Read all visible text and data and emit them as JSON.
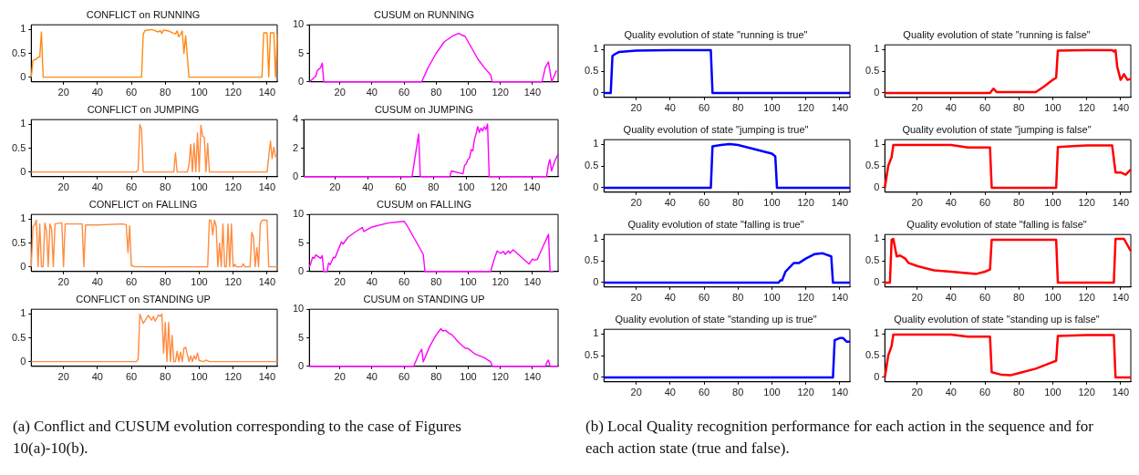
{
  "chart_data": [
    {
      "type": "line",
      "title": "CONFLICT on RUNNING",
      "color": "#ff8a14",
      "xlim": [
        1,
        146
      ],
      "xticks": [
        20,
        40,
        60,
        80,
        100,
        120,
        140
      ],
      "ylim": [
        -0.1,
        1.1
      ],
      "yticks": [
        0,
        0.5,
        1
      ],
      "annotations": [
        "(a) Conflict and CUSUM evolution corresponding to the case of Figures 10(a)-10(b)."
      ],
      "x": [
        1,
        2,
        4,
        5,
        6,
        7,
        8,
        66,
        67,
        68,
        72,
        76,
        77,
        78,
        79,
        82,
        85,
        86,
        87,
        88,
        89,
        90,
        91,
        92,
        94,
        137,
        138,
        140,
        141,
        142,
        144,
        145,
        146
      ],
      "values": [
        0,
        0.35,
        0.38,
        0.42,
        0.42,
        0.95,
        0,
        0,
        0.9,
        0.98,
        1,
        0.95,
        0.98,
        0.92,
        0.99,
        0.97,
        0.92,
        0.91,
        0.97,
        0.85,
        0.9,
        0.97,
        0.5,
        0.87,
        0,
        0,
        0.93,
        0.93,
        0,
        0.93,
        0.93,
        0,
        0.9
      ]
    },
    {
      "type": "line",
      "title": "CUSUM on RUNNING",
      "color": "#ff00ff",
      "xlim": [
        1,
        156
      ],
      "xticks": [
        20,
        40,
        60,
        80,
        100,
        120,
        140
      ],
      "ylim": [
        0,
        10
      ],
      "yticks": [
        0,
        5,
        10
      ],
      "x": [
        1,
        3,
        5,
        6,
        8,
        9,
        10,
        71,
        75,
        80,
        85,
        90,
        94,
        96,
        98,
        102,
        106,
        110,
        114,
        115,
        146,
        148,
        150,
        152,
        155
      ],
      "values": [
        0,
        0.5,
        1,
        2,
        2.5,
        3.3,
        0,
        0,
        2.5,
        5,
        7,
        8,
        8.5,
        8.2,
        8,
        6,
        4,
        2.5,
        1.2,
        0,
        0,
        2.5,
        3.5,
        0,
        2
      ]
    },
    {
      "type": "line",
      "title": "CONFLICT on JUMPING",
      "color": "#ff8c40",
      "xlim": [
        1,
        146
      ],
      "xticks": [
        20,
        40,
        60,
        80,
        100,
        120,
        140
      ],
      "ylim": [
        -0.1,
        1.1
      ],
      "yticks": [
        0,
        0.5,
        1
      ],
      "x": [
        1,
        63,
        64,
        65,
        66,
        67,
        85,
        86,
        87,
        93,
        94,
        95,
        96,
        97,
        98,
        99,
        100,
        101,
        102,
        103,
        104,
        105,
        106,
        140,
        142,
        143,
        144,
        145,
        146
      ],
      "values": [
        0,
        0,
        0.05,
        1,
        0.9,
        0,
        0,
        0.4,
        0,
        0,
        0.15,
        0.58,
        0,
        0.6,
        0,
        0.82,
        0,
        0.98,
        0.75,
        0.73,
        0,
        0.6,
        0,
        0,
        0.65,
        0.28,
        0.52,
        0.32,
        0.3
      ]
    },
    {
      "type": "line",
      "title": "CUSUM on JUMPING",
      "color": "#ff00ff",
      "xlim": [
        1,
        156
      ],
      "xticks": [
        20,
        40,
        60,
        80,
        100,
        120,
        140
      ],
      "ylim": [
        0,
        4
      ],
      "yticks": [
        0,
        2,
        4
      ],
      "x": [
        1,
        67,
        71,
        72,
        90,
        91,
        98,
        99,
        100,
        101,
        102,
        103,
        104,
        105,
        106,
        107,
        108,
        109,
        110,
        111,
        112,
        113,
        114,
        149,
        150,
        151,
        152,
        154,
        156
      ],
      "values": [
        0,
        0,
        3,
        0,
        0,
        0.4,
        0.2,
        0.8,
        0.9,
        1.2,
        1.3,
        1.9,
        1.8,
        2.6,
        3,
        3.5,
        3.1,
        3.4,
        3.2,
        3.5,
        3.3,
        3.7,
        0,
        0,
        0.8,
        1.2,
        0.4,
        1.1,
        1.6
      ]
    },
    {
      "type": "line",
      "title": "CONFLICT on FALLING",
      "color": "#ff8c40",
      "xlim": [
        1,
        146
      ],
      "xticks": [
        20,
        40,
        60,
        80,
        100,
        120,
        140
      ],
      "ylim": [
        -0.1,
        1.1
      ],
      "yticks": [
        0,
        0.5,
        1
      ],
      "x": [
        1,
        2,
        3,
        4,
        5,
        6,
        7,
        8,
        9,
        10,
        11,
        12,
        13,
        14,
        15,
        18,
        19,
        20,
        21,
        31,
        32,
        33,
        40,
        55,
        57,
        58,
        59,
        60,
        61,
        62,
        105,
        106,
        107,
        108,
        109,
        110,
        111,
        112,
        113,
        114,
        115,
        116,
        117,
        118,
        119,
        120,
        121,
        122,
        125,
        126,
        127,
        130,
        131,
        132,
        133,
        134,
        135,
        136,
        137,
        140,
        141,
        146
      ],
      "values": [
        0,
        0.85,
        0.88,
        0.98,
        0,
        0.9,
        0,
        0,
        0.92,
        0.75,
        0,
        0.9,
        0.8,
        0,
        0.9,
        0.92,
        0.92,
        0,
        0.9,
        0.9,
        0,
        0.88,
        0.88,
        0.9,
        0.88,
        0.3,
        0.86,
        0.02,
        0.02,
        0,
        0,
        0.98,
        0.98,
        0.67,
        0.98,
        0.85,
        0,
        0.5,
        0,
        0.9,
        0,
        0,
        0.9,
        0,
        0.9,
        0,
        0.05,
        0,
        0,
        0.06,
        0,
        0,
        0.72,
        0.62,
        0,
        0.4,
        0,
        0.9,
        0.98,
        0.98,
        0,
        0
      ]
    },
    {
      "type": "line",
      "title": "CUSUM on FALLING",
      "color": "#ff00ff",
      "xlim": [
        1,
        156
      ],
      "xticks": [
        20,
        40,
        60,
        80,
        100,
        120,
        140
      ],
      "ylim": [
        0,
        10
      ],
      "yticks": [
        0,
        5,
        10
      ],
      "x": [
        1,
        2,
        3,
        4,
        5,
        7,
        8,
        9,
        10,
        12,
        13,
        14,
        16,
        17,
        20,
        21,
        22,
        25,
        30,
        34,
        35,
        40,
        50,
        60,
        62,
        66,
        70,
        72,
        73,
        114,
        116,
        118,
        120,
        122,
        123,
        125,
        126,
        128,
        132,
        138,
        140,
        141,
        143,
        146,
        150,
        151,
        153
      ],
      "values": [
        0.8,
        1.5,
        2.5,
        2.3,
        2.9,
        2.5,
        2.3,
        2.8,
        0,
        0,
        1.5,
        1.2,
        2.5,
        2.4,
        4.5,
        5.2,
        4.8,
        6,
        7,
        7.7,
        7,
        7.8,
        8.5,
        8.8,
        8,
        6,
        4,
        3,
        0,
        0,
        2,
        3.6,
        3.2,
        3.5,
        3,
        3.6,
        3.2,
        3.8,
        2.8,
        1.3,
        2.2,
        2,
        2.1,
        4,
        6.5,
        0,
        0
      ]
    },
    {
      "type": "line",
      "title": "CONFLICT on STANDING UP",
      "color": "#ff8c40",
      "xlim": [
        1,
        146
      ],
      "xticks": [
        20,
        40,
        60,
        80,
        100,
        120,
        140
      ],
      "ylim": [
        -0.1,
        1.1
      ],
      "yticks": [
        0,
        0.5,
        1
      ],
      "x": [
        1,
        63,
        64,
        65,
        67,
        70,
        72,
        73,
        74,
        76,
        77,
        78,
        79,
        80,
        81,
        82,
        83,
        84,
        85,
        86,
        87,
        88,
        89,
        90,
        91,
        92,
        94,
        95,
        96,
        97,
        98,
        99,
        100,
        103,
        104,
        106,
        146
      ],
      "values": [
        0,
        0,
        0.05,
        1,
        0.8,
        0.97,
        0.87,
        0.95,
        0.85,
        0.98,
        0.95,
        1,
        0.18,
        0.82,
        0,
        0.82,
        0,
        0.55,
        0,
        0,
        0.22,
        0,
        0.2,
        0,
        0.28,
        0.3,
        0,
        0.12,
        0,
        0.12,
        0.05,
        0.18,
        0.02,
        0,
        0.03,
        0,
        0
      ]
    },
    {
      "type": "line",
      "title": "CUSUM on STANDING UP",
      "color": "#ff00ff",
      "xlim": [
        1,
        156
      ],
      "xticks": [
        20,
        40,
        60,
        80,
        100,
        120,
        140
      ],
      "ylim": [
        0,
        10
      ],
      "yticks": [
        0,
        5,
        10
      ],
      "x": [
        1,
        66,
        69,
        71,
        72,
        76,
        80,
        83,
        84,
        86,
        88,
        90,
        94,
        98,
        100,
        104,
        110,
        114,
        115,
        148,
        149,
        150,
        151,
        156
      ],
      "values": [
        0,
        0,
        2,
        3,
        0.8,
        3.5,
        5.5,
        6.6,
        6.2,
        6.3,
        5.8,
        5.5,
        4.2,
        3.2,
        3.1,
        2.2,
        1.5,
        0.8,
        0,
        0,
        0.7,
        1.1,
        0,
        0
      ]
    },
    {
      "type": "line",
      "title": "Quality evolution of state \"running is true\"",
      "color": "#0000ff",
      "xlim": [
        1,
        146
      ],
      "xticks": [
        20,
        40,
        60,
        80,
        100,
        120,
        140
      ],
      "ylim": [
        -0.1,
        1.1
      ],
      "yticks": [
        0,
        0.5,
        1
      ],
      "annotations": [
        "(b) Local Quality recognition performance for each action in the sequence and for each action state (true and false)."
      ],
      "x": [
        1,
        5,
        6,
        8,
        10,
        20,
        40,
        64,
        65,
        146
      ],
      "values": [
        0,
        0,
        0.85,
        0.9,
        0.94,
        0.97,
        0.98,
        0.98,
        0,
        0
      ]
    },
    {
      "type": "line",
      "title": "Quality evolution of state \"running is false\"",
      "color": "#ff0000",
      "xlim": [
        1,
        146
      ],
      "xticks": [
        20,
        40,
        60,
        80,
        100,
        120,
        140
      ],
      "ylim": [
        -0.1,
        1.1
      ],
      "yticks": [
        0,
        0.5,
        1
      ],
      "x": [
        1,
        63,
        65,
        67,
        90,
        95,
        100,
        102,
        103,
        120,
        135,
        136,
        137,
        138,
        140,
        142,
        144,
        146
      ],
      "values": [
        0,
        0,
        0.1,
        0.02,
        0.02,
        0.15,
        0.3,
        0.35,
        0.97,
        0.98,
        0.98,
        0.95,
        0.98,
        0.6,
        0.3,
        0.43,
        0.3,
        0.32
      ]
    },
    {
      "type": "line",
      "title": "Quality evolution of state \"jumping is true\"",
      "color": "#0000ff",
      "xlim": [
        1,
        146
      ],
      "xticks": [
        20,
        40,
        60,
        80,
        100,
        120,
        140
      ],
      "ylim": [
        -0.1,
        1.1
      ],
      "yticks": [
        0,
        0.5,
        1
      ],
      "x": [
        1,
        64,
        65,
        70,
        75,
        80,
        90,
        100,
        102,
        103,
        146
      ],
      "values": [
        0,
        0,
        0.95,
        0.98,
        1,
        0.98,
        0.88,
        0.78,
        0.72,
        0,
        0
      ]
    },
    {
      "type": "line",
      "title": "Quality evolution of state \"jumping is false\"",
      "color": "#ff0000",
      "xlim": [
        1,
        146
      ],
      "xticks": [
        20,
        40,
        60,
        80,
        100,
        120,
        140
      ],
      "ylim": [
        -0.1,
        1.1
      ],
      "yticks": [
        0,
        0.5,
        1
      ],
      "x": [
        1,
        3,
        5,
        6,
        20,
        40,
        50,
        63,
        64,
        102,
        103,
        110,
        120,
        135,
        137,
        140,
        143,
        146
      ],
      "values": [
        0,
        0.5,
        0.7,
        0.98,
        0.98,
        0.98,
        0.92,
        0.92,
        0,
        0,
        0.93,
        0.95,
        0.97,
        0.97,
        0.35,
        0.35,
        0.3,
        0.42
      ]
    },
    {
      "type": "line",
      "title": "Quality evolution of state \"falling is true\"",
      "color": "#0000ff",
      "xlim": [
        1,
        146
      ],
      "xticks": [
        20,
        40,
        60,
        80,
        100,
        120,
        140
      ],
      "ylim": [
        -0.1,
        1.1
      ],
      "yticks": [
        0,
        0.5,
        1
      ],
      "x": [
        1,
        104,
        105,
        106,
        108,
        110,
        113,
        116,
        120,
        125,
        130,
        135,
        136,
        146
      ],
      "values": [
        0,
        0,
        0.05,
        0.05,
        0.25,
        0.33,
        0.45,
        0.45,
        0.55,
        0.65,
        0.67,
        0.6,
        0,
        0
      ]
    },
    {
      "type": "line",
      "title": "Quality evolution of state \"falling is false\"",
      "color": "#ff0000",
      "xlim": [
        1,
        146
      ],
      "xticks": [
        20,
        40,
        60,
        80,
        100,
        120,
        140
      ],
      "ylim": [
        -0.1,
        1.1
      ],
      "yticks": [
        0,
        0.5,
        1
      ],
      "x": [
        1,
        4,
        5,
        6,
        8,
        10,
        13,
        15,
        20,
        30,
        40,
        55,
        60,
        63,
        64,
        70,
        102,
        103,
        136,
        137,
        142,
        146
      ],
      "values": [
        0,
        0,
        0.98,
        1,
        0.6,
        0.62,
        0.55,
        0.45,
        0.38,
        0.28,
        0.25,
        0.2,
        0.25,
        0.3,
        0.98,
        0.98,
        0.98,
        0,
        0,
        1,
        1,
        0.72
      ]
    },
    {
      "type": "line",
      "title": "Quality evolution of state \"standing up is true\"",
      "color": "#0000ff",
      "xlim": [
        1,
        146
      ],
      "xticks": [
        20,
        40,
        60,
        80,
        100,
        120,
        140
      ],
      "ylim": [
        -0.1,
        1.1
      ],
      "yticks": [
        0,
        0.5,
        1
      ],
      "x": [
        1,
        136,
        137,
        140,
        142,
        144,
        146
      ],
      "values": [
        0,
        0,
        0.85,
        0.9,
        0.9,
        0.82,
        0.82
      ]
    },
    {
      "type": "line",
      "title": "Quality evolution of state \"standing up is false\"",
      "color": "#ff0000",
      "xlim": [
        1,
        146
      ],
      "xticks": [
        20,
        40,
        60,
        80,
        100,
        120,
        140
      ],
      "ylim": [
        -0.1,
        1.1
      ],
      "yticks": [
        0,
        0.5,
        1
      ],
      "x": [
        1,
        3,
        5,
        6,
        40,
        50,
        63,
        64,
        70,
        75,
        80,
        90,
        100,
        102,
        103,
        120,
        136,
        137,
        146
      ],
      "values": [
        0,
        0.5,
        0.72,
        0.98,
        0.98,
        0.93,
        0.93,
        0.12,
        0.06,
        0.05,
        0.1,
        0.2,
        0.35,
        0.38,
        0.95,
        0.97,
        0.97,
        0,
        0
      ]
    }
  ]
}
